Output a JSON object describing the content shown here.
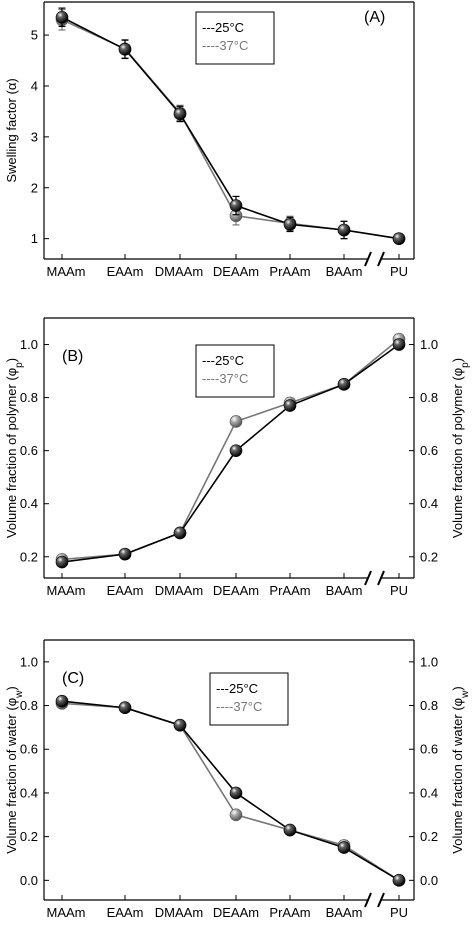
{
  "chart_data": [
    {
      "type": "line",
      "panel_label": "(A)",
      "categories": [
        "MAAm",
        "EAAm",
        "DMAAm",
        "DEAAm",
        "PrAAm",
        "BAAm",
        "PU"
      ],
      "ylabel": "Swelling factor (α)",
      "ylim": [
        0.6,
        5.65
      ],
      "yticks": [
        1,
        2,
        3,
        4,
        5
      ],
      "right_axis": false,
      "axis_break_before_last": true,
      "error_bars": true,
      "series": [
        {
          "name": "25°C",
          "legend_label": "---25°C",
          "color": "#000000",
          "values": [
            5.35,
            4.72,
            3.45,
            1.65,
            1.28,
            1.17,
            1.0
          ],
          "errors": [
            0.18,
            0.18,
            0.15,
            0.18,
            0.14,
            0.17,
            0.04
          ]
        },
        {
          "name": "37°C",
          "legend_label": "----37°C",
          "color": "#777777",
          "values": [
            5.3,
            4.73,
            3.47,
            1.45,
            1.3,
            1.17,
            1.0
          ],
          "errors": [
            0.2,
            0.18,
            0.15,
            0.18,
            0.14,
            0.17,
            0.04
          ]
        }
      ],
      "legend_position": "top-center"
    },
    {
      "type": "line",
      "panel_label": "(B)",
      "categories": [
        "MAAm",
        "EAAm",
        "DMAAm",
        "DEAAm",
        "PrAAm",
        "BAAm",
        "PU"
      ],
      "ylabel": "Volume fraction of polymer (φp)",
      "ylabel_base": "Volume fraction of polymer (φ",
      "ylabel_sub": "p",
      "ylim": [
        0.12,
        1.1
      ],
      "yticks": [
        "0.2",
        "0.4",
        "0.6",
        "0.8",
        "1.0"
      ],
      "right_axis": true,
      "axis_break_before_last": true,
      "series": [
        {
          "name": "25°C",
          "legend_label": "---25°C",
          "color": "#000000",
          "values": [
            0.18,
            0.21,
            0.29,
            0.6,
            0.77,
            0.85,
            1.0
          ]
        },
        {
          "name": "37°C",
          "legend_label": "----37°C",
          "color": "#777777",
          "values": [
            0.19,
            0.21,
            0.29,
            0.71,
            0.78,
            0.85,
            1.02
          ]
        }
      ],
      "legend_position": "top-center"
    },
    {
      "type": "line",
      "panel_label": "(C)",
      "categories": [
        "MAAm",
        "EAAm",
        "DMAAm",
        "DEAAm",
        "PrAAm",
        "BAAm",
        "PU"
      ],
      "ylabel": "Volume fraction of water (φw)",
      "ylabel_base": "Volume fraction of water (φ",
      "ylabel_sub": "w",
      "ylim": [
        -0.09,
        1.1
      ],
      "yticks": [
        "0.0",
        "0.2",
        "0.4",
        "0.6",
        "0.8",
        "1.0"
      ],
      "right_axis": true,
      "axis_break_before_last": true,
      "series": [
        {
          "name": "25°C",
          "legend_label": "---25°C",
          "color": "#000000",
          "values": [
            0.82,
            0.79,
            0.71,
            0.4,
            0.23,
            0.15,
            0.0
          ]
        },
        {
          "name": "37°C",
          "legend_label": "----37°C",
          "color": "#777777",
          "values": [
            0.81,
            0.79,
            0.71,
            0.3,
            0.23,
            0.16,
            0.0
          ]
        }
      ],
      "legend_position": "top-center"
    }
  ]
}
